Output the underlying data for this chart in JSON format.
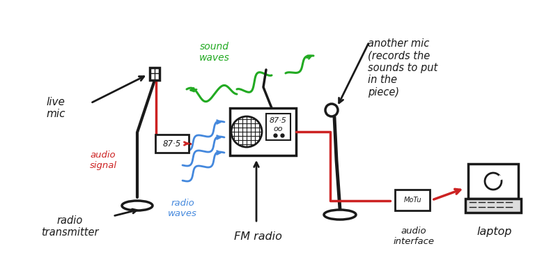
{
  "bg_color": "#ffffff",
  "labels": {
    "live_mic": "live\nmic",
    "audio_signal": "audio\nsignal",
    "radio_transmitter": "radio\ntransmitter",
    "radio_waves": "radio\nwaves",
    "fm_radio": "FM radio",
    "sound_waves": "sound\nwaves",
    "another_mic": "another mic\n(records the\nsounds to put\nin the\npiece)",
    "audio_interface": "audio\ninterface",
    "laptop": "laptop",
    "freq1": "87·5",
    "freq2": "87·5\noo"
  },
  "colors": {
    "black": "#1a1a1a",
    "red": "#cc2222",
    "blue": "#4488dd",
    "green": "#22aa22"
  }
}
